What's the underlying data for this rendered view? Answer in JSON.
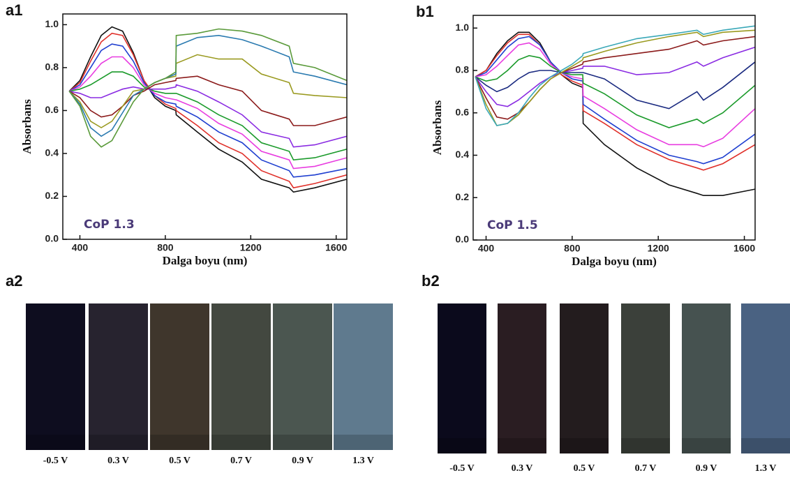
{
  "chart_data": [
    {
      "type": "line",
      "label": "a1",
      "annotation": "CoP 1.3",
      "xlabel": "Dalga boyu (nm)",
      "ylabel": "Absorbans",
      "xlim": [
        320,
        1650
      ],
      "xticks": [
        400,
        800,
        1200,
        1600
      ],
      "ylim": [
        0,
        1.05
      ],
      "yticks": [
        {
          "value": 0,
          "label": "0.0"
        },
        0.2,
        0.4,
        0.6,
        0.8,
        {
          "value": 1,
          "label": "1.0"
        }
      ],
      "x": [
        350,
        400,
        450,
        500,
        550,
        600,
        650,
        700,
        750,
        800,
        849,
        851,
        950,
        1050,
        1160,
        1250,
        1380,
        1400,
        1500,
        1650
      ],
      "series": [
        {
          "color": "#111111",
          "values": [
            0.69,
            0.74,
            0.85,
            0.95,
            0.99,
            0.97,
            0.87,
            0.74,
            0.66,
            0.62,
            0.6,
            0.58,
            0.5,
            0.42,
            0.36,
            0.28,
            0.24,
            0.22,
            0.24,
            0.28
          ]
        },
        {
          "color": "#e0302a",
          "values": [
            0.69,
            0.73,
            0.83,
            0.92,
            0.96,
            0.95,
            0.86,
            0.74,
            0.67,
            0.63,
            0.61,
            0.6,
            0.53,
            0.45,
            0.4,
            0.32,
            0.27,
            0.24,
            0.26,
            0.3
          ]
        },
        {
          "color": "#1f3fd0",
          "values": [
            0.69,
            0.72,
            0.8,
            0.88,
            0.91,
            0.9,
            0.83,
            0.73,
            0.67,
            0.64,
            0.63,
            0.62,
            0.57,
            0.5,
            0.45,
            0.37,
            0.32,
            0.29,
            0.3,
            0.33
          ]
        },
        {
          "color": "#e83ce0",
          "values": [
            0.69,
            0.71,
            0.76,
            0.82,
            0.85,
            0.85,
            0.8,
            0.72,
            0.68,
            0.66,
            0.65,
            0.65,
            0.61,
            0.54,
            0.49,
            0.41,
            0.37,
            0.33,
            0.34,
            0.38
          ]
        },
        {
          "color": "#1a9a2a",
          "values": [
            0.69,
            0.7,
            0.72,
            0.75,
            0.78,
            0.78,
            0.76,
            0.71,
            0.69,
            0.68,
            0.68,
            0.68,
            0.64,
            0.58,
            0.53,
            0.45,
            0.41,
            0.37,
            0.38,
            0.42
          ]
        },
        {
          "color": "#8a2be2",
          "values": [
            0.69,
            0.68,
            0.66,
            0.66,
            0.68,
            0.7,
            0.71,
            0.7,
            0.7,
            0.7,
            0.71,
            0.72,
            0.69,
            0.64,
            0.58,
            0.5,
            0.47,
            0.43,
            0.44,
            0.48
          ]
        },
        {
          "color": "#8b1a1a",
          "values": [
            0.69,
            0.66,
            0.6,
            0.57,
            0.58,
            0.62,
            0.67,
            0.69,
            0.72,
            0.73,
            0.74,
            0.75,
            0.76,
            0.72,
            0.69,
            0.6,
            0.56,
            0.53,
            0.53,
            0.57
          ]
        },
        {
          "color": "#9a9a20",
          "values": [
            0.69,
            0.64,
            0.55,
            0.52,
            0.55,
            0.62,
            0.69,
            0.7,
            0.73,
            0.75,
            0.76,
            0.82,
            0.86,
            0.84,
            0.84,
            0.77,
            0.73,
            0.68,
            0.67,
            0.66
          ]
        },
        {
          "color": "#2a7ab0",
          "values": [
            0.69,
            0.63,
            0.52,
            0.48,
            0.51,
            0.59,
            0.67,
            0.7,
            0.73,
            0.75,
            0.77,
            0.9,
            0.94,
            0.95,
            0.93,
            0.9,
            0.85,
            0.78,
            0.76,
            0.72
          ]
        },
        {
          "color": "#5a9a3a",
          "values": [
            0.69,
            0.62,
            0.48,
            0.43,
            0.46,
            0.55,
            0.64,
            0.7,
            0.73,
            0.75,
            0.78,
            0.95,
            0.96,
            0.98,
            0.97,
            0.95,
            0.9,
            0.82,
            0.8,
            0.74
          ]
        }
      ]
    },
    {
      "type": "line",
      "label": "b1",
      "annotation": "CoP 1.5",
      "xlabel": "Dalga boyu (nm)",
      "ylabel": "Absorbans",
      "xlim": [
        340,
        1650
      ],
      "xticks": [
        400,
        800,
        1200,
        1600
      ],
      "ylim": [
        0,
        1.06
      ],
      "yticks": [
        {
          "value": 0,
          "label": "0.0"
        },
        0.2,
        0.4,
        0.6,
        0.8,
        {
          "value": 1,
          "label": "1.0"
        }
      ],
      "x": [
        350,
        400,
        450,
        500,
        550,
        600,
        650,
        700,
        750,
        800,
        849,
        851,
        950,
        1100,
        1250,
        1380,
        1410,
        1500,
        1650
      ],
      "series": [
        {
          "color": "#111111",
          "values": [
            0.77,
            0.8,
            0.88,
            0.94,
            0.98,
            0.98,
            0.93,
            0.84,
            0.78,
            0.74,
            0.72,
            0.55,
            0.45,
            0.34,
            0.26,
            0.22,
            0.21,
            0.21,
            0.24
          ]
        },
        {
          "color": "#e0302a",
          "values": [
            0.77,
            0.8,
            0.87,
            0.93,
            0.97,
            0.97,
            0.92,
            0.84,
            0.78,
            0.75,
            0.73,
            0.61,
            0.55,
            0.45,
            0.38,
            0.34,
            0.33,
            0.36,
            0.45
          ]
        },
        {
          "color": "#1f3fd0",
          "values": [
            0.77,
            0.79,
            0.85,
            0.91,
            0.95,
            0.96,
            0.92,
            0.84,
            0.79,
            0.76,
            0.75,
            0.64,
            0.57,
            0.47,
            0.4,
            0.37,
            0.36,
            0.39,
            0.5
          ]
        },
        {
          "color": "#e83ce0",
          "values": [
            0.77,
            0.78,
            0.82,
            0.87,
            0.92,
            0.93,
            0.9,
            0.83,
            0.79,
            0.77,
            0.76,
            0.68,
            0.62,
            0.52,
            0.45,
            0.45,
            0.44,
            0.48,
            0.62
          ]
        },
        {
          "color": "#1a9a2a",
          "values": [
            0.77,
            0.75,
            0.76,
            0.8,
            0.85,
            0.87,
            0.86,
            0.82,
            0.79,
            0.78,
            0.78,
            0.74,
            0.69,
            0.59,
            0.53,
            0.57,
            0.55,
            0.6,
            0.73
          ]
        },
        {
          "color": "#1a2a80",
          "values": [
            0.77,
            0.73,
            0.7,
            0.72,
            0.76,
            0.79,
            0.8,
            0.8,
            0.79,
            0.79,
            0.79,
            0.79,
            0.76,
            0.66,
            0.62,
            0.7,
            0.66,
            0.72,
            0.84
          ]
        },
        {
          "color": "#8a2be2",
          "values": [
            0.77,
            0.7,
            0.64,
            0.63,
            0.66,
            0.7,
            0.74,
            0.77,
            0.79,
            0.8,
            0.81,
            0.82,
            0.82,
            0.78,
            0.79,
            0.84,
            0.82,
            0.86,
            0.91
          ]
        },
        {
          "color": "#8b1a1a",
          "values": [
            0.77,
            0.67,
            0.58,
            0.57,
            0.6,
            0.65,
            0.71,
            0.76,
            0.79,
            0.81,
            0.83,
            0.84,
            0.86,
            0.88,
            0.9,
            0.94,
            0.92,
            0.94,
            0.96
          ]
        },
        {
          "color": "#9a9a20",
          "values": [
            0.77,
            0.64,
            0.54,
            0.55,
            0.59,
            0.65,
            0.71,
            0.76,
            0.79,
            0.82,
            0.85,
            0.86,
            0.89,
            0.93,
            0.96,
            0.98,
            0.96,
            0.98,
            0.99
          ]
        },
        {
          "color": "#3aa8b8",
          "values": [
            0.77,
            0.62,
            0.54,
            0.55,
            0.6,
            0.67,
            0.73,
            0.77,
            0.8,
            0.83,
            0.87,
            0.88,
            0.91,
            0.95,
            0.97,
            0.99,
            0.97,
            0.99,
            1.01
          ]
        }
      ]
    }
  ],
  "photos": [
    {
      "label": "a2",
      "swatches": [
        {
          "color": "#0e0d1f",
          "label": "-0.5 V"
        },
        {
          "color": "#27232f",
          "label": "0.3 V"
        },
        {
          "color": "#3f362c",
          "label": "0.5 V"
        },
        {
          "color": "#434840",
          "label": "0.7 V"
        },
        {
          "color": "#4b5650",
          "label": "0.9 V"
        },
        {
          "color": "#5f7a8e",
          "label": "1.3 V"
        }
      ]
    },
    {
      "label": "b2",
      "swatches": [
        {
          "color": "#0b0a1c",
          "label": "-0.5 V"
        },
        {
          "color": "#2a1d22",
          "label": "0.3 V"
        },
        {
          "color": "#231c1e",
          "label": "0.5 V"
        },
        {
          "color": "#3b403a",
          "label": "0.7 V"
        },
        {
          "color": "#465250",
          "label": "0.9 V"
        },
        {
          "color": "#4a6282",
          "label": "1.3 V"
        }
      ]
    }
  ]
}
